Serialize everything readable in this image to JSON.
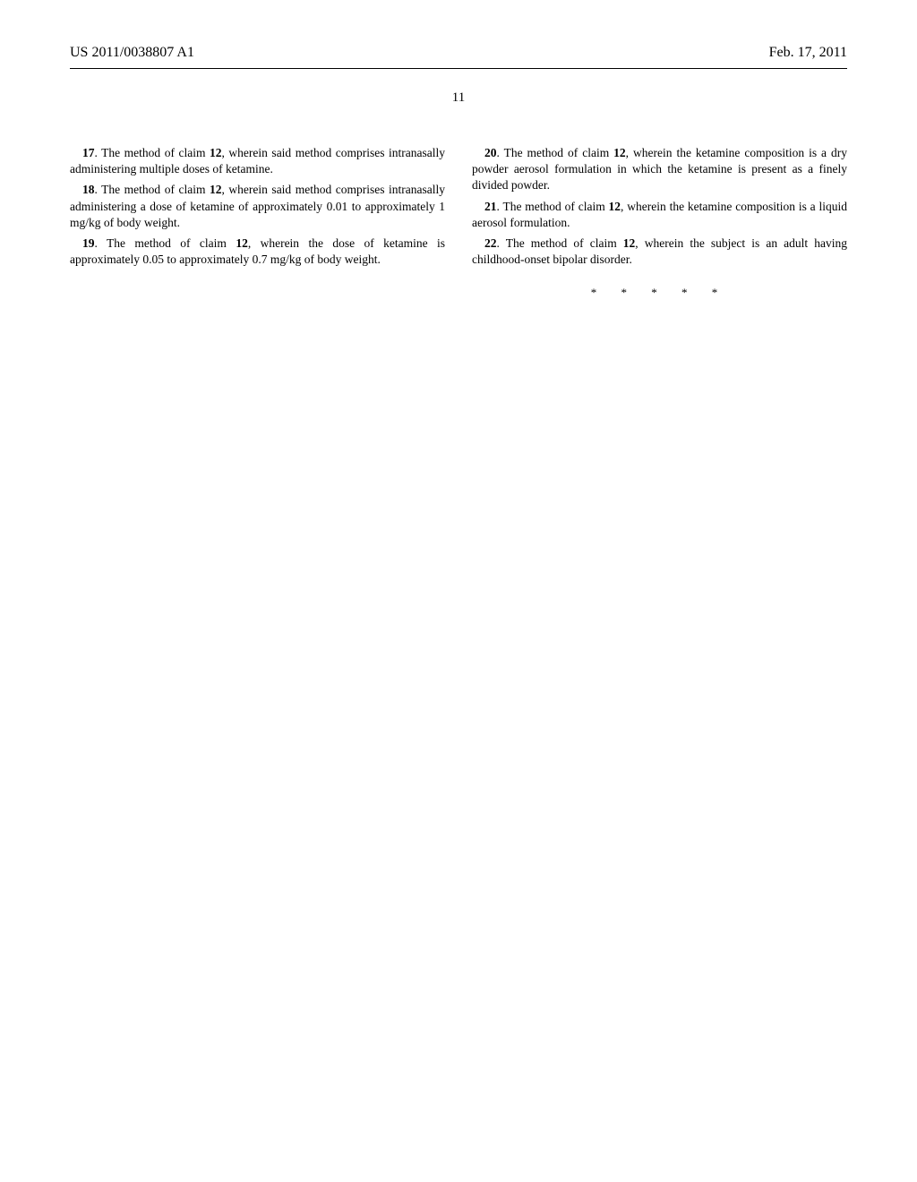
{
  "header": {
    "pub_number": "US 2011/0038807 A1",
    "pub_date": "Feb. 17, 2011"
  },
  "page_number": "11",
  "left_column": {
    "claim17": {
      "num": "17",
      "ref": "12",
      "text_before": ". The method of claim ",
      "text_after": ", wherein said method comprises intranasally administering multiple doses of ketamine."
    },
    "claim18": {
      "num": "18",
      "ref": "12",
      "text_before": ". The method of claim ",
      "text_after": ", wherein said method comprises intranasally administering a dose of ketamine of approximately 0.01 to approximately 1 mg/kg of body weight."
    },
    "claim19": {
      "num": "19",
      "ref": "12",
      "text_before": ". The method of claim ",
      "text_after": ", wherein the dose of ketamine is approximately 0.05 to approximately 0.7 mg/kg of body weight."
    }
  },
  "right_column": {
    "claim20": {
      "num": "20",
      "ref": "12",
      "text_before": ". The method of claim ",
      "text_after": ", wherein the ketamine composition is a dry powder aerosol formulation in which the ketamine is present as a finely divided powder."
    },
    "claim21": {
      "num": "21",
      "ref": "12",
      "text_before": ". The method of claim ",
      "text_after": ", wherein the ketamine composition is a liquid aerosol formulation."
    },
    "claim22": {
      "num": "22",
      "ref": "12",
      "text_before": ". The method of claim ",
      "text_after": ", wherein the subject is an adult having childhood-onset bipolar disorder."
    }
  },
  "end_marks": "* * * * *"
}
